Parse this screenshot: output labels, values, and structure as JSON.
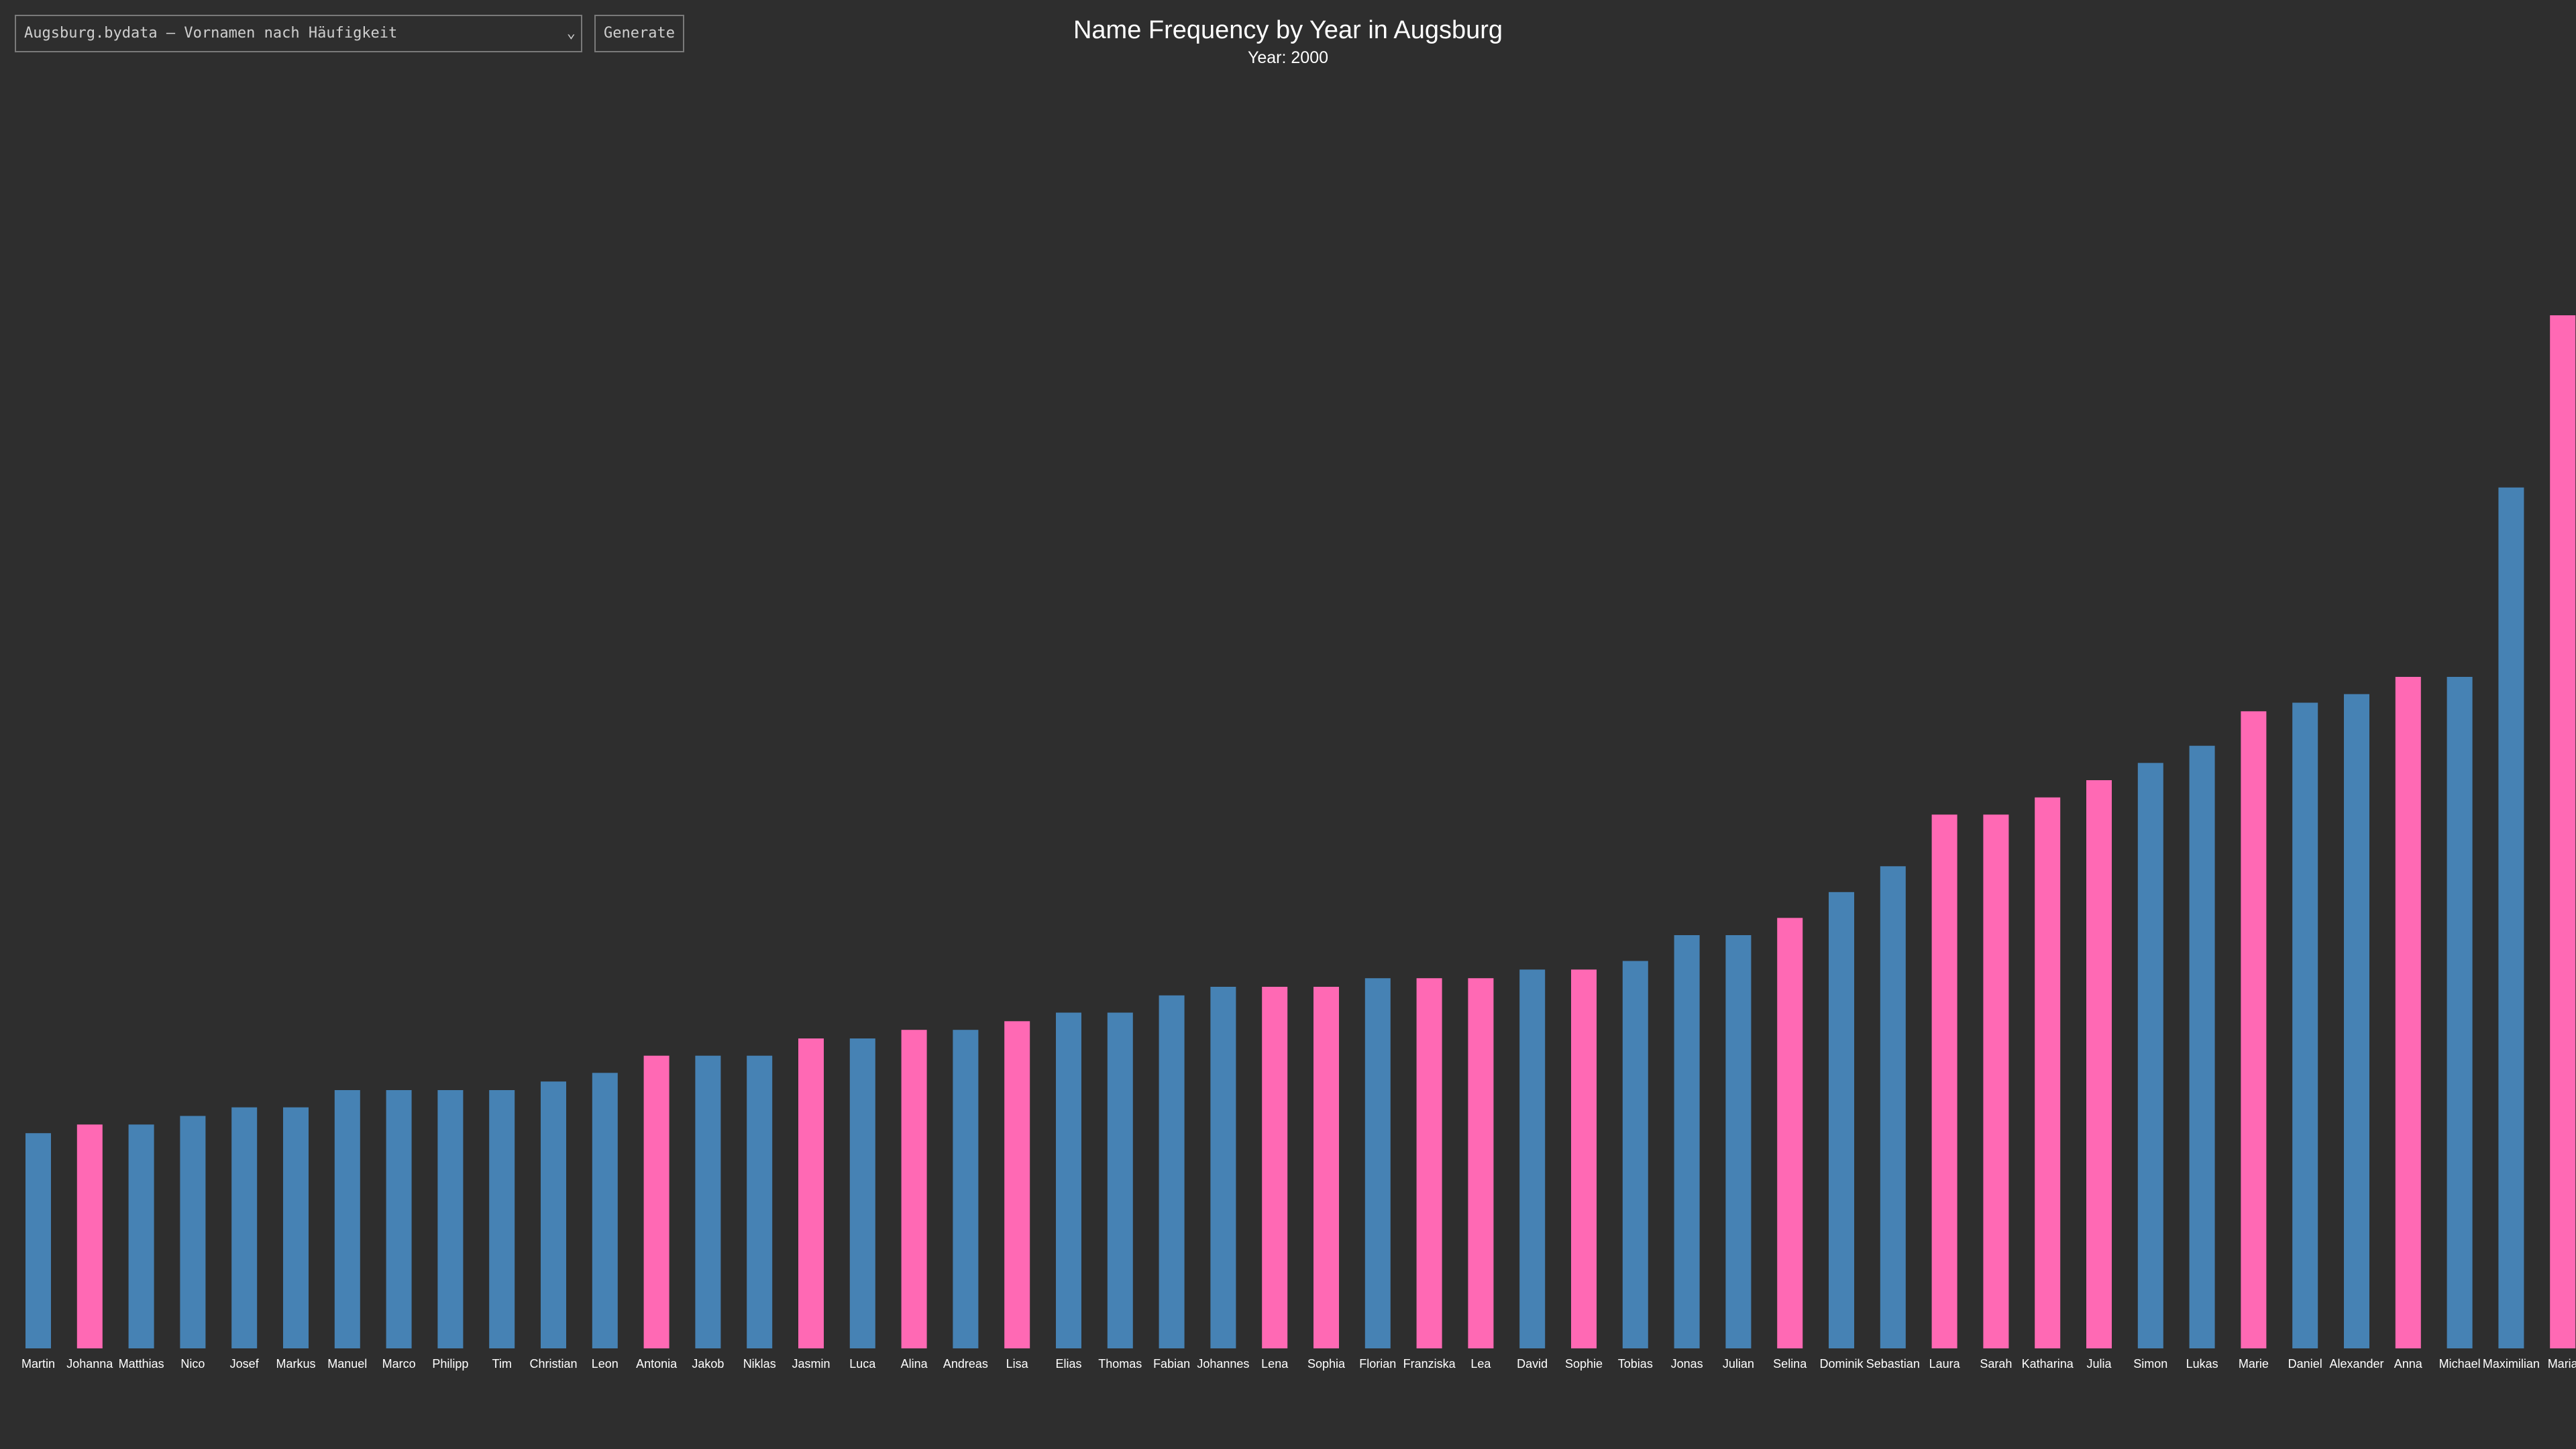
{
  "controls": {
    "dataset_select_value": "Augsburg.bydata – Vornamen nach Häufigkeit",
    "generate_label": "Generate"
  },
  "colors": {
    "background": "#2e2e2e",
    "male": "#4682b4",
    "female": "#ff69b4"
  },
  "chart_data": {
    "type": "bar",
    "title": "Name Frequency by Year in Augsburg",
    "subtitle": "Year: 2000",
    "xlabel": "",
    "ylabel": "",
    "grid": false,
    "categories": [
      "Martin",
      "Johanna",
      "Matthias",
      "Nico",
      "Josef",
      "Markus",
      "Manuel",
      "Marco",
      "Philipp",
      "Tim",
      "Christian",
      "Leon",
      "Antonia",
      "Jakob",
      "Niklas",
      "Jasmin",
      "Luca",
      "Alina",
      "Andreas",
      "Lisa",
      "Elias",
      "Thomas",
      "Fabian",
      "Johannes",
      "Lena",
      "Sophia",
      "Florian",
      "Franziska",
      "Lea",
      "David",
      "Sophie",
      "Tobias",
      "Jonas",
      "Julian",
      "Selina",
      "Dominik",
      "Sebastian",
      "Laura",
      "Sarah",
      "Katharina",
      "Julia",
      "Simon",
      "Lukas",
      "Marie",
      "Daniel",
      "Alexander",
      "Anna",
      "Michael",
      "Maximilian",
      "Maria"
    ],
    "values": [
      25,
      26,
      26,
      27,
      28,
      28,
      30,
      30,
      30,
      30,
      31,
      32,
      34,
      34,
      34,
      36,
      36,
      37,
      37,
      38,
      39,
      39,
      41,
      42,
      42,
      42,
      43,
      43,
      43,
      44,
      44,
      45,
      48,
      48,
      50,
      53,
      56,
      62,
      62,
      64,
      66,
      68,
      70,
      74,
      75,
      76,
      78,
      78,
      100,
      120
    ],
    "bar_gender": [
      "m",
      "f",
      "m",
      "m",
      "m",
      "m",
      "m",
      "m",
      "m",
      "m",
      "m",
      "m",
      "f",
      "m",
      "m",
      "f",
      "m",
      "f",
      "m",
      "f",
      "m",
      "m",
      "m",
      "m",
      "f",
      "f",
      "m",
      "f",
      "f",
      "m",
      "f",
      "m",
      "m",
      "m",
      "f",
      "m",
      "m",
      "f",
      "f",
      "f",
      "f",
      "m",
      "m",
      "f",
      "m",
      "m",
      "f",
      "m",
      "m",
      "f"
    ],
    "ylim": [
      0,
      120
    ]
  }
}
